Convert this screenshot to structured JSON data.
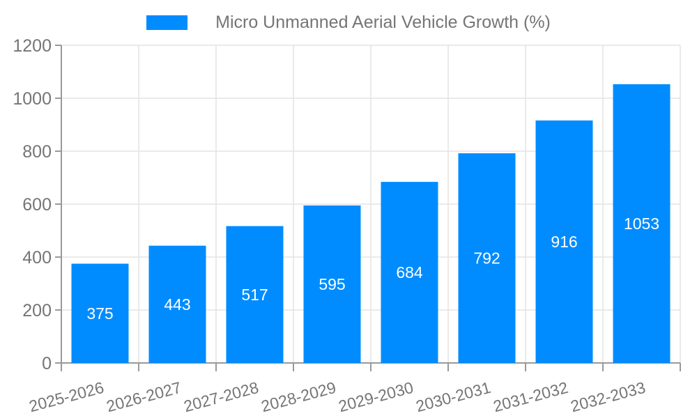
{
  "legend": {
    "label": "Micro Unmanned Aerial Vehicle Growth (%)"
  },
  "chart_data": {
    "type": "bar",
    "title": "Micro Unmanned Aerial Vehicle Growth (%)",
    "categories": [
      "2025-2026",
      "2026-2027",
      "2027-2028",
      "2028-2029",
      "2029-2030",
      "2030-2031",
      "2031-2032",
      "2032-2033"
    ],
    "values": [
      375,
      443,
      517,
      595,
      684,
      792,
      916,
      1053
    ],
    "xlabel": "",
    "ylabel": "",
    "ylim": [
      0,
      1200
    ],
    "yticks": [
      0,
      200,
      400,
      600,
      800,
      1000,
      1200
    ],
    "grid": true,
    "x_tick_rotation_deg": 15,
    "legend_position": "top-center",
    "colors": {
      "bar": "#008CFF",
      "bar_label": "#FFFFFF",
      "grid": "#E3E3E3",
      "axis": "#999999",
      "tick_label": "#757575",
      "legend_text": "#757575",
      "background": "#FFFFFF"
    }
  }
}
